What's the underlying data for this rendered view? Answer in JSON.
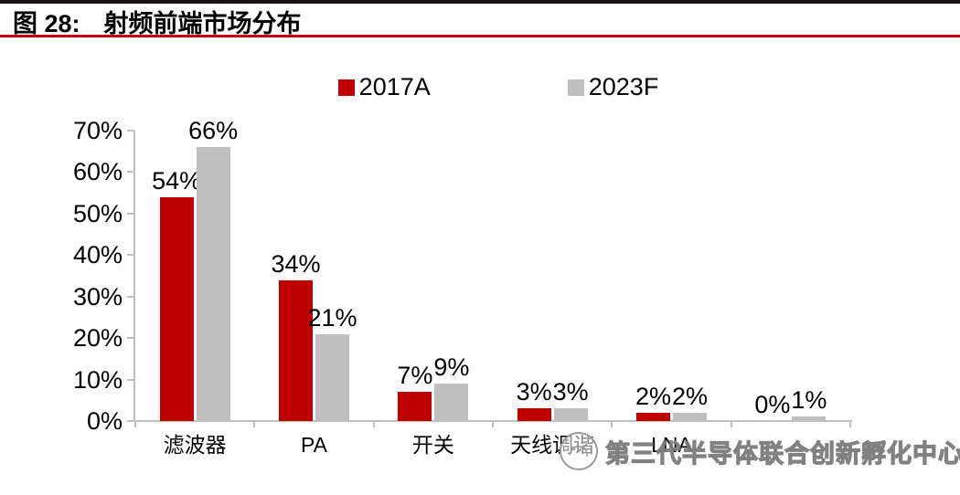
{
  "header": {
    "figure_label": "图 28:",
    "title": "射频前端市场分布"
  },
  "legend": {
    "items": [
      {
        "label": "2017A",
        "color": "#C00000"
      },
      {
        "label": "2023F",
        "color": "#BFBFBF"
      }
    ]
  },
  "chart_data": {
    "type": "bar",
    "title": "射频前端市场分布",
    "categories": [
      "滤波器",
      "PA",
      "开关",
      "天线调谐",
      "LNA",
      ""
    ],
    "series": [
      {
        "name": "2017A",
        "color": "#C00000",
        "values": [
          54,
          34,
          7,
          3,
          2,
          0
        ]
      },
      {
        "name": "2023F",
        "color": "#BFBFBF",
        "values": [
          66,
          21,
          9,
          3,
          2,
          1
        ]
      }
    ],
    "value_labels": [
      [
        "54%",
        "34%",
        "7%",
        "3%",
        "2%",
        "0%"
      ],
      [
        "66%",
        "21%",
        "9%",
        "3%",
        "2%",
        "1%"
      ]
    ],
    "y_ticks": [
      "0%",
      "10%",
      "20%",
      "30%",
      "40%",
      "50%",
      "60%",
      "70%"
    ],
    "ylim": [
      0,
      70
    ],
    "grid": false,
    "legend_position": "top",
    "xlabel": "",
    "ylabel": "",
    "axis_color": "#BFBFBF"
  },
  "watermark": {
    "text": "第三代半导体联合创新孵化中心",
    "logo": "circle-logo"
  },
  "colors": {
    "series_red": "#C00000",
    "series_gray": "#BFBFBF",
    "rule_dark": "#1D1114",
    "rule_red": "#BF0008",
    "axis_gray": "#BFBFBF",
    "text_black": "#000000"
  }
}
